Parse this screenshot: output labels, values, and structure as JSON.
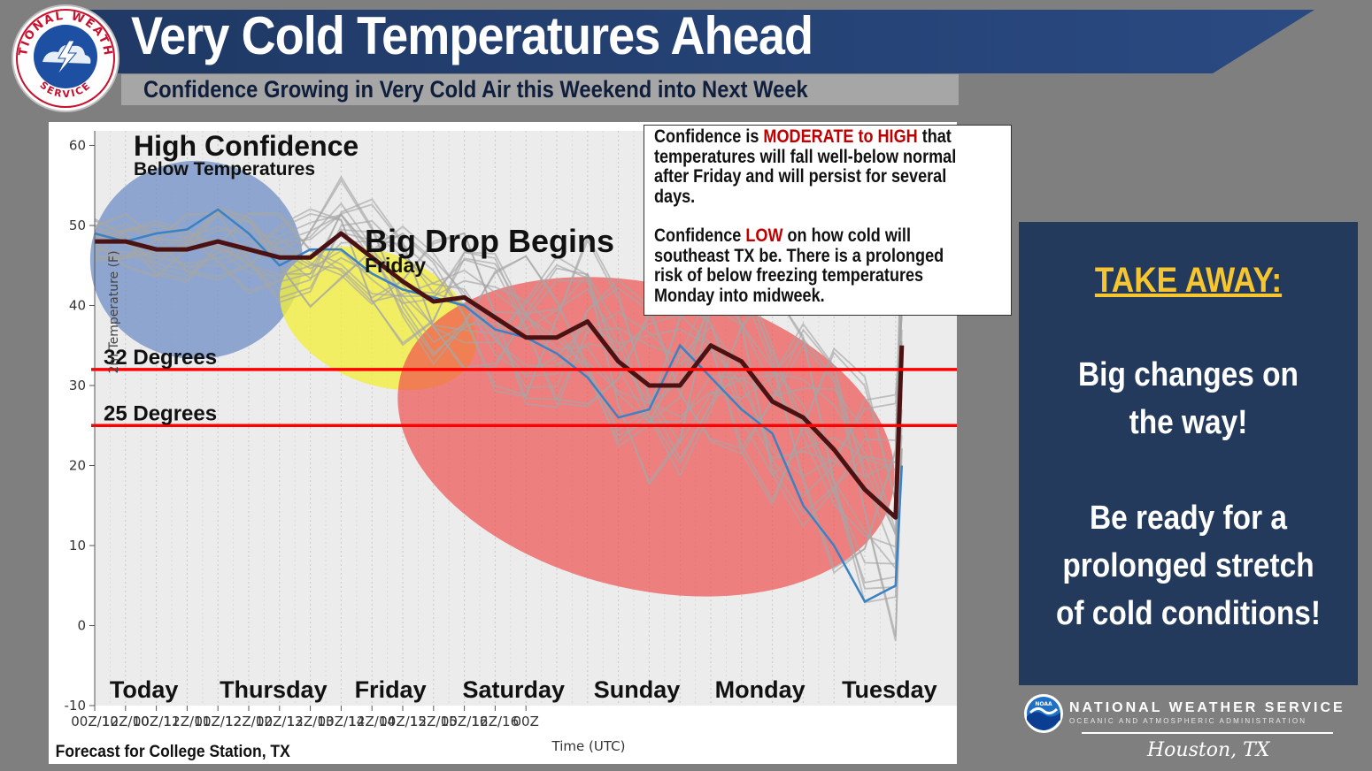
{
  "header": {
    "title": "Very Cold Temperatures Ahead",
    "subtitle": "Confidence Growing in Very Cold Air  this Weekend into Next Week",
    "logo_text_top": "NATIONAL WEATHER",
    "logo_text_bottom": "SERVICE"
  },
  "colors": {
    "banner": "#1f3864",
    "panel": "#233a5c",
    "accent_yellow": "#f7c62f",
    "threshold_red": "#ff0000",
    "high_confidence_circle": "#6f8fc6",
    "friday_circle": "#f2ee3c",
    "low_confidence_circle": "#ef4b4b",
    "mean_line": "#4a1212",
    "member_lines": "#a6a6a6",
    "blue_member": "#3b82c4"
  },
  "chart_data": {
    "type": "line",
    "ylabel": "2m Temperature (F)",
    "xlabel": "Time (UTC)",
    "ylim": [
      -10,
      60
    ],
    "yticks": [
      60,
      50,
      40,
      30,
      20,
      10,
      0,
      -10
    ],
    "xlim": [
      0,
      13.1
    ],
    "x_tick_labels": [
      "00Z/10",
      "12Z/10",
      "00Z/11",
      "12Z/11",
      "00Z/12",
      "12Z/12",
      "00Z/13",
      "12Z/13",
      "00Z/14",
      "12Z/14",
      "00Z/15",
      "12Z/15",
      "00Z/16",
      "12Z/16",
      "00Z"
    ],
    "grid": true,
    "footer": "Forecast for College Station, TX",
    "day_labels": [
      {
        "text": "Today",
        "x": 0.8
      },
      {
        "text": "Thursday",
        "x": 2.9
      },
      {
        "text": "Friday",
        "x": 4.8
      },
      {
        "text": "Saturday",
        "x": 6.8
      },
      {
        "text": "Sunday",
        "x": 8.8
      },
      {
        "text": "Monday",
        "x": 10.8
      },
      {
        "text": "Tuesday",
        "x": 12.9
      }
    ],
    "thresholds": [
      {
        "label": "32 Degrees",
        "value": 32
      },
      {
        "label": "25 Degrees",
        "value": 25
      }
    ],
    "annotations": [
      {
        "title": "High Confidence",
        "subtitle": "Below Temperatures"
      },
      {
        "title": "Big Drop Begins",
        "subtitle": "Friday"
      }
    ],
    "series": [
      {
        "role": "ensemble-mean",
        "x": [
          0,
          0.5,
          1,
          1.5,
          2,
          2.5,
          3,
          3.5,
          4,
          4.5,
          5,
          5.5,
          6,
          6.5,
          7,
          7.5,
          8,
          8.5,
          9,
          9.5,
          10,
          10.5,
          11,
          11.5,
          12,
          12.5,
          13,
          13.1
        ],
        "y": [
          48,
          48,
          47,
          47,
          48,
          47,
          46,
          46,
          49,
          46,
          43,
          40.5,
          41,
          38.5,
          36,
          36,
          38,
          33,
          30,
          30,
          35,
          33,
          28,
          26,
          22,
          17,
          13.5,
          35
        ]
      },
      {
        "role": "blue-member",
        "x": [
          0,
          0.5,
          1,
          1.5,
          2,
          2.5,
          3,
          3.5,
          4,
          4.5,
          5,
          5.5,
          6,
          6.5,
          7,
          7.5,
          8,
          8.5,
          9,
          9.5,
          10,
          10.5,
          11,
          11.5,
          12,
          12.5,
          13,
          13.1
        ],
        "y": [
          49,
          48,
          49,
          49.5,
          52,
          49,
          45,
          47,
          47,
          44,
          42,
          41,
          40,
          37,
          36,
          34,
          31,
          26,
          27,
          35,
          31,
          27,
          24,
          15,
          10,
          3,
          5,
          20
        ]
      }
    ]
  },
  "info_box": {
    "p1_a": "Confidence is ",
    "p1_em": "MODERATE to HIGH",
    "p1_b": " that",
    "p1_l2": "temperatures will fall well-below normal",
    "p1_l3": "after Friday and will persist for several",
    "p1_l4": "days.",
    "p2_a": "Confidence ",
    "p2_em": "LOW",
    "p2_b": " on how cold will",
    "p2_l2": "southeast TX be. There is a prolonged",
    "p2_l3": "risk of below freezing temperatures",
    "p2_l4": "Monday into midweek."
  },
  "takeaway": {
    "title": "TAKE AWAY:",
    "line1": "Big changes on",
    "line2": "the way!",
    "line3": "Be ready for a",
    "line4": "prolonged stretch",
    "line5": "of cold conditions!"
  },
  "footer_brand": {
    "name": "NATIONAL WEATHER SERVICE",
    "sub": "OCEANIC AND ATMOSPHERIC ADMINISTRATION",
    "office": "Houston, TX",
    "badge": "NOAA"
  }
}
